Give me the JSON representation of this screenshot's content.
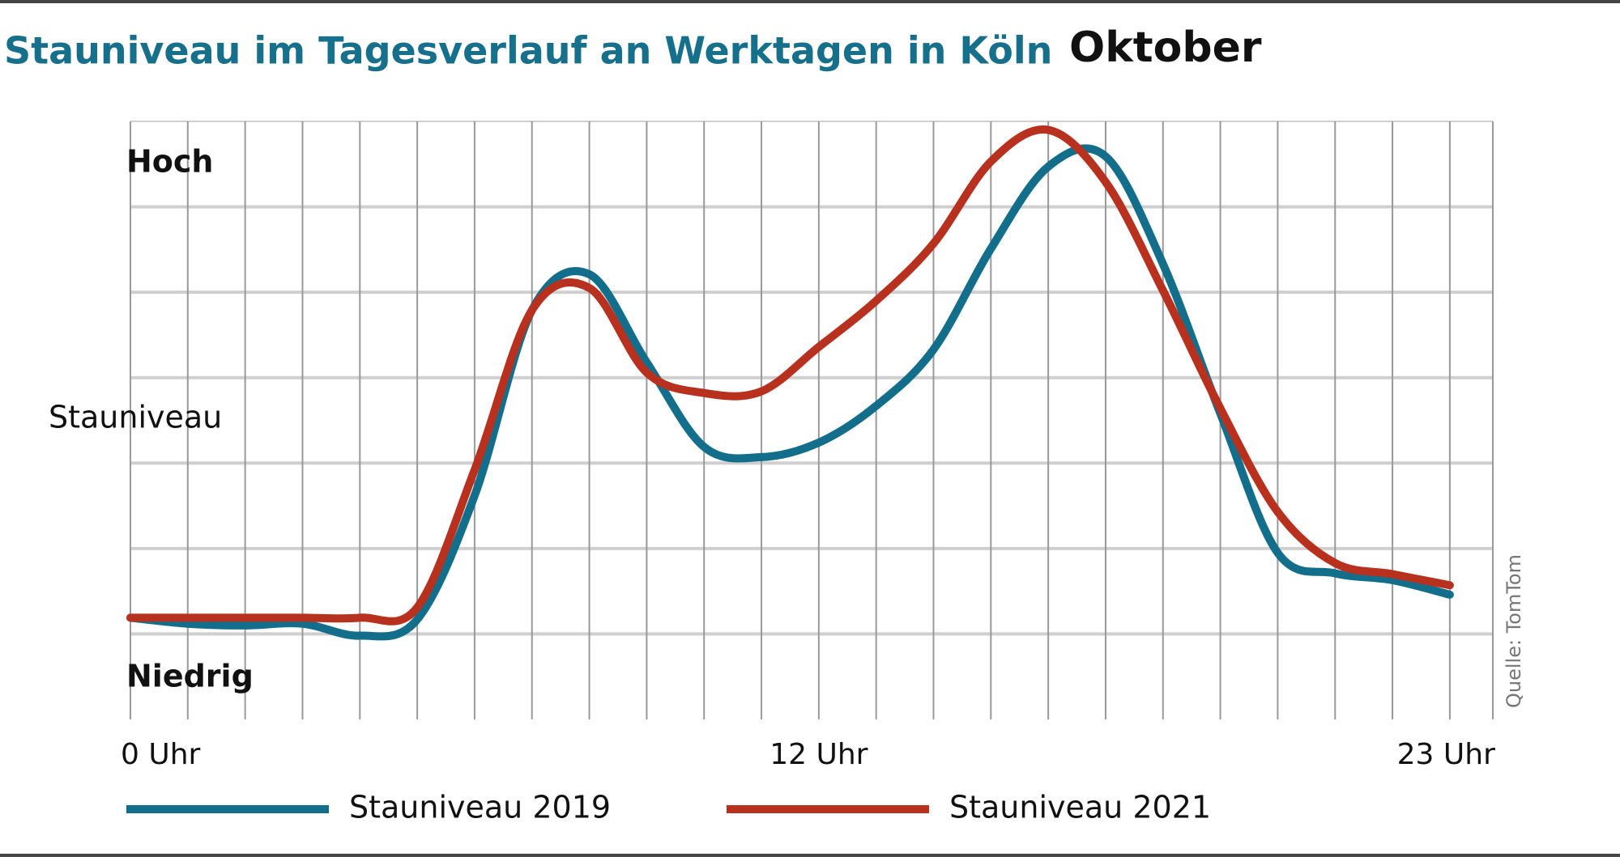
{
  "chart_data": {
    "type": "line",
    "title": "Stauniveau im Tagesverlauf an Werktagen in Köln",
    "subtitle": "Oktober",
    "y_label": "Stauniveau",
    "y_high_label": "Hoch",
    "y_low_label": "Niedrig",
    "source": "Quelle: TomTom",
    "x": [
      0,
      1,
      2,
      3,
      4,
      5,
      6,
      7,
      8,
      9,
      10,
      11,
      12,
      13,
      14,
      15,
      16,
      17,
      18,
      19,
      20,
      21,
      22,
      23
    ],
    "xlim": [
      0,
      23.75
    ],
    "xticks": [
      {
        "value": 0,
        "label": "0 Uhr"
      },
      {
        "value": 12,
        "label": "12 Uhr"
      },
      {
        "value": 23,
        "label": "23 Uhr"
      }
    ],
    "ylim": [
      0,
      7
    ],
    "yticks": [
      1,
      2,
      3,
      4,
      5,
      6
    ],
    "grid": true,
    "series": [
      {
        "name": "Stauniveau 2019",
        "color": "#126e8a",
        "values": [
          1.19,
          1.12,
          1.1,
          1.12,
          0.98,
          1.17,
          2.62,
          4.79,
          5.21,
          4.18,
          3.19,
          3.07,
          3.24,
          3.67,
          4.33,
          5.51,
          6.47,
          6.59,
          5.33,
          3.58,
          1.95,
          1.71,
          1.63,
          1.46
        ]
      },
      {
        "name": "Stauniveau 2021",
        "color": "#b8311f",
        "values": [
          1.19,
          1.19,
          1.19,
          1.19,
          1.19,
          1.31,
          2.92,
          4.79,
          5.05,
          4.06,
          3.82,
          3.84,
          4.36,
          4.9,
          5.57,
          6.53,
          6.9,
          6.29,
          5.02,
          3.64,
          2.43,
          1.83,
          1.7,
          1.57
        ]
      }
    ]
  }
}
